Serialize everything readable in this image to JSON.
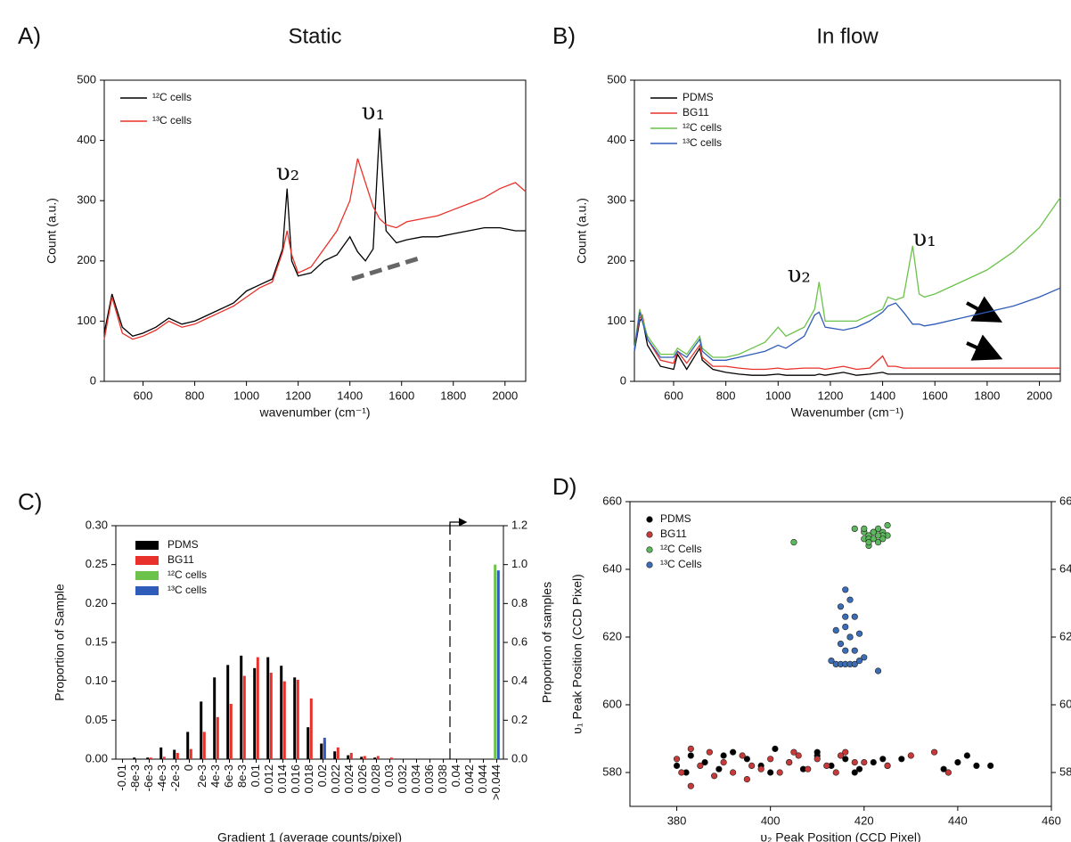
{
  "chart_data": [
    {
      "type": "line",
      "panel_label": "A)",
      "title": "Static",
      "x_label": "wavenumber (cm⁻¹)",
      "y_label": "Count (a.u.)",
      "xlim": [
        450,
        2080
      ],
      "xticks": [
        600,
        800,
        1000,
        1200,
        1400,
        1600,
        1800,
        2000
      ],
      "ylim": [
        0,
        500
      ],
      "yticks": [
        0,
        100,
        200,
        300,
        400,
        500
      ],
      "legend": "upper left",
      "x": [
        450,
        480,
        520,
        560,
        600,
        650,
        700,
        750,
        800,
        850,
        900,
        950,
        1000,
        1050,
        1100,
        1140,
        1157,
        1175,
        1200,
        1250,
        1300,
        1350,
        1400,
        1430,
        1460,
        1490,
        1515,
        1540,
        1580,
        1620,
        1680,
        1740,
        1800,
        1860,
        1920,
        1980,
        2040,
        2080
      ],
      "series": [
        {
          "name": "¹²C cells",
          "color": "#000000",
          "values": [
            80,
            145,
            90,
            75,
            80,
            90,
            105,
            95,
            100,
            110,
            120,
            130,
            150,
            160,
            170,
            220,
            320,
            200,
            175,
            180,
            200,
            210,
            240,
            215,
            200,
            220,
            420,
            250,
            230,
            235,
            240,
            240,
            245,
            250,
            255,
            255,
            250,
            250
          ]
        },
        {
          "name": "¹³C cells",
          "color": "#e8312a",
          "values": [
            70,
            140,
            80,
            70,
            75,
            85,
            100,
            90,
            95,
            105,
            115,
            125,
            140,
            155,
            165,
            215,
            250,
            210,
            180,
            190,
            220,
            250,
            300,
            370,
            330,
            290,
            270,
            260,
            255,
            265,
            270,
            275,
            285,
            295,
            305,
            320,
            330,
            315
          ]
        }
      ],
      "annotations": [
        {
          "text": "υ₂",
          "x": 1160,
          "y": 345
        },
        {
          "text": "υ₁",
          "x": 1490,
          "y": 445
        }
      ]
    },
    {
      "type": "line",
      "panel_label": "B)",
      "title": "In flow",
      "x_label": "Wavenumber (cm⁻¹)",
      "y_label": "Count (a.u.)",
      "xlim": [
        450,
        2080
      ],
      "xticks": [
        600,
        800,
        1000,
        1200,
        1400,
        1600,
        1800,
        2000
      ],
      "ylim": [
        0,
        500
      ],
      "yticks": [
        0,
        100,
        200,
        300,
        400,
        500
      ],
      "legend": "upper left",
      "x": [
        450,
        470,
        480,
        500,
        550,
        600,
        615,
        650,
        700,
        710,
        750,
        800,
        850,
        900,
        950,
        1000,
        1030,
        1100,
        1140,
        1157,
        1180,
        1250,
        1300,
        1350,
        1400,
        1420,
        1450,
        1480,
        1515,
        1540,
        1560,
        1600,
        1700,
        1800,
        1900,
        2000,
        2080
      ],
      "series": [
        {
          "name": "PDMS",
          "color": "#000000",
          "values": [
            50,
            100,
            105,
            60,
            25,
            20,
            45,
            20,
            55,
            35,
            20,
            15,
            12,
            10,
            10,
            12,
            10,
            10,
            10,
            12,
            10,
            15,
            10,
            12,
            15,
            12,
            12,
            12,
            12,
            12,
            12,
            12,
            12,
            12,
            12,
            12,
            12
          ]
        },
        {
          "name": "BG11",
          "color": "#e8312a",
          "values": [
            55,
            105,
            110,
            70,
            35,
            30,
            50,
            30,
            60,
            40,
            25,
            25,
            22,
            20,
            20,
            22,
            20,
            22,
            22,
            22,
            20,
            25,
            20,
            22,
            42,
            25,
            25,
            22,
            22,
            22,
            22,
            22,
            22,
            22,
            22,
            22,
            22
          ]
        },
        {
          "name": "¹²C cells",
          "color": "#6cc24a",
          "values": [
            55,
            120,
            105,
            75,
            45,
            45,
            55,
            45,
            75,
            55,
            40,
            40,
            45,
            55,
            65,
            90,
            75,
            90,
            120,
            165,
            100,
            100,
            100,
            110,
            120,
            140,
            135,
            140,
            225,
            145,
            140,
            145,
            165,
            185,
            215,
            255,
            305
          ]
        },
        {
          "name": "¹³C cells",
          "color": "#2e5cb8",
          "values": [
            50,
            115,
            100,
            70,
            40,
            40,
            50,
            40,
            70,
            50,
            35,
            35,
            40,
            45,
            50,
            60,
            55,
            75,
            110,
            115,
            90,
            85,
            90,
            100,
            115,
            125,
            130,
            115,
            95,
            95,
            92,
            95,
            105,
            115,
            125,
            140,
            155
          ]
        }
      ],
      "annotations": [
        {
          "text": "υ₂",
          "x": 1080,
          "y": 175
        },
        {
          "text": "υ₁",
          "x": 1560,
          "y": 235
        }
      ]
    },
    {
      "type": "bar",
      "panel_label": "C)",
      "x_label": "Gradient 1 (average counts/pixel)",
      "y_label": "Proportion of Sample",
      "y2_label": "Proportion of samples",
      "legend": "upper left",
      "categories": [
        "-0.01",
        "-8e-3",
        "-6e-3",
        "-4e-3",
        "-2e-3",
        "0",
        "2e-3",
        "4e-3",
        "6e-3",
        "8e-3",
        "0.01",
        "0.012",
        "0.014",
        "0.016",
        "0.018",
        "0.02",
        "0.022",
        "0.024",
        "0.026",
        "0.028",
        "0.03",
        "0.032",
        "0.034",
        "0.036",
        "0.038",
        "0.04",
        "0.042",
        "0.044",
        ">0.044"
      ],
      "ylim": [
        0,
        0.3
      ],
      "yticks": [
        {
          "value": 0,
          "label": "0.00"
        },
        0.05,
        {
          "value": 0.1,
          "label": "0.10"
        },
        0.15,
        {
          "value": 0.2,
          "label": "0.20"
        },
        0.25,
        {
          "value": 0.3,
          "label": "0.30"
        }
      ],
      "y2lim": [
        0,
        1.2
      ],
      "y2ticks": [
        {
          "value": 0,
          "label": "0.0"
        },
        0.2,
        0.4,
        0.6,
        0.8,
        {
          "value": 1,
          "label": "1.0"
        },
        1.2
      ],
      "series": [
        {
          "name": "PDMS",
          "color": "#000000",
          "values": [
            0,
            0.002,
            0.002,
            0.015,
            0.012,
            0.035,
            0.074,
            0.105,
            0.121,
            0.133,
            0.117,
            0.131,
            0.12,
            0.105,
            0.041,
            0.02,
            0.01,
            0.005,
            0.003,
            0.002,
            0,
            0,
            0,
            0,
            0,
            0,
            0,
            0,
            0
          ]
        },
        {
          "name": "BG11",
          "color": "#e8312a",
          "values": [
            0,
            0,
            0.002,
            0.003,
            0.008,
            0.013,
            0.035,
            0.054,
            0.071,
            0.107,
            0.131,
            0.111,
            0.1,
            0.102,
            0.078,
            0.022,
            0.015,
            0.008,
            0.004,
            0.004,
            0.002,
            0,
            0,
            0,
            0,
            0,
            0,
            0,
            0
          ]
        },
        {
          "name": "¹²C cells",
          "color": "#6cc24a",
          "axis": "y2",
          "values": [
            0,
            0,
            0,
            0,
            0,
            0,
            0,
            0,
            0,
            0,
            0,
            0,
            0,
            0,
            0,
            0,
            0,
            0,
            0,
            0,
            0,
            0,
            0,
            0,
            0,
            0,
            0,
            0,
            1.0
          ]
        },
        {
          "name": "¹³C cells",
          "color": "#2e5cb8",
          "axis": "y2",
          "values": [
            0,
            0,
            0,
            0,
            0,
            0,
            0,
            0,
            0,
            0,
            0,
            0,
            0,
            0,
            0,
            0.11,
            0,
            0,
            0,
            0,
            0,
            0,
            0,
            0,
            0,
            0,
            0,
            0,
            0.97
          ]
        }
      ]
    },
    {
      "type": "scatter",
      "panel_label": "D)",
      "x_label": "υ₂ Peak Position (CCD Pixel)",
      "y_label": "υ₁ Peak Position (CCD Pixel)",
      "xlim": [
        370,
        460
      ],
      "xticks": [
        380,
        400,
        420,
        440,
        460
      ],
      "ylim": [
        570,
        660
      ],
      "yticks": [
        580,
        600,
        620,
        640,
        660
      ],
      "y2lim": [
        570,
        660
      ],
      "y2ticks": [
        580,
        600,
        620,
        640,
        660
      ],
      "legend": "upper left",
      "series": [
        {
          "name": "PDMS",
          "color": "#000000",
          "x": [
            380,
            383,
            386,
            389,
            392,
            395,
            398,
            401,
            404,
            407,
            410,
            413,
            416,
            419,
            422,
            425,
            428,
            437,
            440,
            442,
            444,
            447,
            382,
            390,
            400,
            410,
            418,
            424
          ],
          "y": [
            582,
            585,
            583,
            581,
            586,
            584,
            582,
            587,
            583,
            581,
            585,
            582,
            584,
            581,
            583,
            582,
            584,
            581,
            583,
            585,
            582,
            582,
            580,
            585,
            580,
            586,
            580,
            584
          ]
        },
        {
          "name": "BG11",
          "color": "#c8393a",
          "x": [
            380,
            381,
            383,
            385,
            387,
            390,
            392,
            394,
            396,
            398,
            400,
            402,
            404,
            406,
            408,
            410,
            412,
            414,
            416,
            418,
            420,
            425,
            430,
            435,
            438,
            383,
            388,
            395,
            405,
            415
          ],
          "y": [
            584,
            580,
            576,
            582,
            586,
            583,
            580,
            585,
            582,
            581,
            584,
            580,
            583,
            585,
            581,
            584,
            582,
            580,
            586,
            583,
            583,
            582,
            585,
            586,
            580,
            587,
            579,
            578,
            586,
            585
          ]
        },
        {
          "name": "¹²C Cells",
          "color": "#5cb85c",
          "x": [
            405,
            418,
            420,
            421,
            422,
            423,
            424,
            425,
            420,
            421,
            422,
            423,
            424,
            425,
            421,
            422,
            423,
            424,
            420,
            421
          ],
          "y": [
            648,
            652,
            651,
            650,
            651,
            652,
            651,
            650,
            649,
            649,
            649,
            648,
            650,
            653,
            647,
            651,
            650,
            649,
            652,
            648
          ]
        },
        {
          "name": "¹³C Cells",
          "color": "#3a6db5",
          "x": [
            416,
            417,
            415,
            418,
            416,
            414,
            417,
            419,
            415,
            416,
            418,
            413,
            414,
            415,
            416,
            417,
            418,
            419,
            420,
            423,
            416,
            417
          ],
          "y": [
            634,
            631,
            629,
            626,
            623,
            622,
            620,
            621,
            618,
            616,
            616,
            613,
            612,
            612,
            612,
            612,
            612,
            613,
            614,
            610,
            626,
            620
          ]
        }
      ]
    }
  ]
}
